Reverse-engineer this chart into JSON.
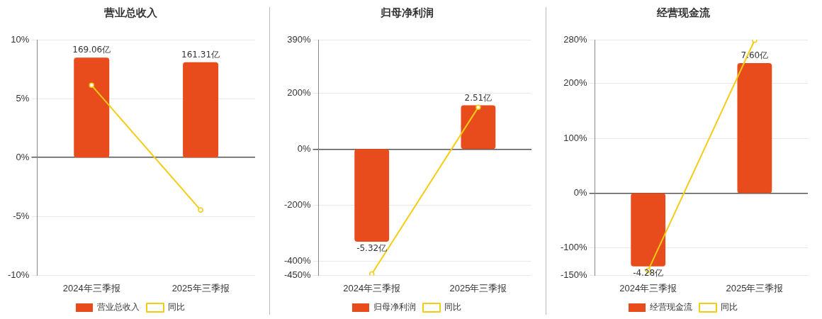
{
  "chart_data": [
    {
      "type": "bar",
      "title": "营业总收入",
      "categories": [
        "2024年三季报",
        "2025年三季报"
      ],
      "series": [
        {
          "name": "营业总收入",
          "axis": "y2",
          "color": "#e84c1c",
          "values": [
            169.06,
            161.31
          ],
          "value_labels": [
            "169.06亿",
            "161.31亿"
          ]
        },
        {
          "name": "同比",
          "type": "line",
          "color": "#f5cc14",
          "values": [
            6.13,
            -4.46
          ]
        }
      ],
      "ylim": [
        -10,
        10
      ],
      "yticks": [
        {
          "value": -10,
          "label": "-10%"
        },
        {
          "value": -5,
          "label": "-5%"
        },
        {
          "value": 0,
          "label": "0%"
        },
        {
          "value": 5,
          "label": "5%"
        },
        {
          "value": 10,
          "label": "10%"
        }
      ],
      "grid": "y",
      "legend": "bottom",
      "marker": "circle"
    },
    {
      "type": "bar",
      "title": "归母净利润",
      "categories": [
        "2024年三季报",
        "2025年三季报"
      ],
      "series": [
        {
          "name": "归母净利润",
          "axis": "y2",
          "color": "#e84c1c",
          "values": [
            -5.32,
            2.51
          ],
          "value_labels": [
            "-5.32亿",
            "2.51亿"
          ]
        },
        {
          "name": "同比",
          "type": "line",
          "color": "#f5cc14",
          "values": [
            -445,
            149
          ]
        }
      ],
      "ylim": [
        -450,
        390
      ],
      "yticks": [
        {
          "value": -450,
          "label": "-450%"
        },
        {
          "value": -400,
          "label": "-400%"
        },
        {
          "value": -200,
          "label": "-200%"
        },
        {
          "value": 0,
          "label": "0%"
        },
        {
          "value": 200,
          "label": "200%"
        },
        {
          "value": 390,
          "label": "390%"
        }
      ],
      "grid": "y",
      "legend": "bottom",
      "marker": "circle"
    },
    {
      "type": "bar",
      "title": "经营现金流",
      "categories": [
        "2024年三季报",
        "2025年三季报"
      ],
      "series": [
        {
          "name": "经营现金流",
          "axis": "y2",
          "color": "#e84c1c",
          "values": [
            -4.28,
            7.6
          ],
          "value_labels": [
            "-4.28亿",
            "7.60亿"
          ]
        },
        {
          "name": "同比",
          "type": "line",
          "color": "#f5cc14",
          "values": [
            -141,
            279
          ]
        }
      ],
      "ylim": [
        -150,
        280
      ],
      "yticks": [
        {
          "value": -150,
          "label": "-150%"
        },
        {
          "value": -100,
          "label": "-100%"
        },
        {
          "value": 0,
          "label": "0%"
        },
        {
          "value": 100,
          "label": "100%"
        },
        {
          "value": 200,
          "label": "200%"
        },
        {
          "value": 280,
          "label": "280%"
        }
      ],
      "grid": "y",
      "legend": "bottom",
      "marker": "circle"
    }
  ]
}
